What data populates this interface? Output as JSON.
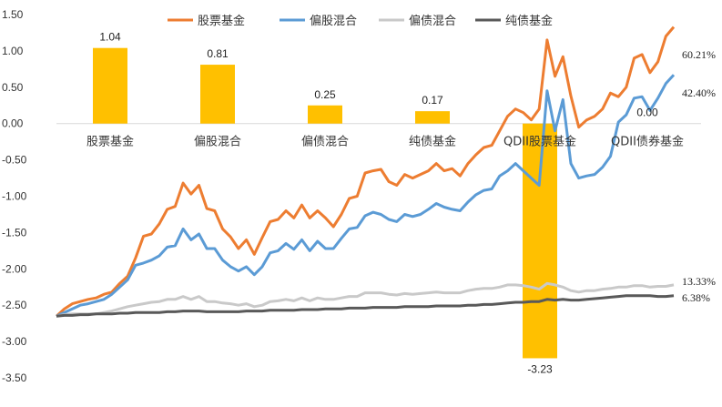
{
  "chart_data": {
    "type": "bar+line",
    "ylim": [
      -3.5,
      1.5
    ],
    "yticks": [
      1.5,
      1.0,
      0.5,
      0.0,
      -0.5,
      -1.0,
      -1.5,
      -2.0,
      -2.5,
      -3.0,
      -3.5
    ],
    "ytick_labels": [
      "1.50",
      "1.00",
      "0.50",
      "0.00",
      "-0.50",
      "-1.00",
      "-1.50",
      "-2.00",
      "-2.50",
      "-3.00",
      "-3.50"
    ],
    "grid": false,
    "legend_position": "top",
    "bars": {
      "categories": [
        "股票基金",
        "偏股混合",
        "偏债混合",
        "纯债基金",
        "QDII股票基金",
        "QDII债券基金"
      ],
      "values": [
        1.04,
        0.81,
        0.25,
        0.17,
        -3.23,
        0.0
      ],
      "value_labels": [
        "1.04",
        "0.81",
        "0.25",
        "0.17",
        "-3.23",
        "0.00"
      ],
      "color": "#FFC000"
    },
    "series": [
      {
        "name": "股票基金",
        "color": "#ED7D31",
        "end_label": "60.21%",
        "values": [
          -2.65,
          -2.55,
          -2.48,
          -2.45,
          -2.42,
          -2.4,
          -2.35,
          -2.32,
          -2.2,
          -2.1,
          -1.85,
          -1.55,
          -1.52,
          -1.38,
          -1.18,
          -1.14,
          -0.82,
          -0.97,
          -0.85,
          -1.17,
          -1.2,
          -1.45,
          -1.56,
          -1.72,
          -1.6,
          -1.8,
          -1.57,
          -1.35,
          -1.32,
          -1.2,
          -1.3,
          -1.12,
          -1.3,
          -1.2,
          -1.3,
          -1.42,
          -1.25,
          -1.03,
          -1.0,
          -0.68,
          -0.65,
          -0.63,
          -0.8,
          -0.85,
          -0.7,
          -0.75,
          -0.7,
          -0.65,
          -0.55,
          -0.65,
          -0.62,
          -0.72,
          -0.55,
          -0.43,
          -0.33,
          -0.3,
          -0.1,
          0.1,
          0.2,
          0.15,
          0.05,
          0.2,
          1.15,
          0.65,
          0.92,
          0.38,
          -0.05,
          0.05,
          0.1,
          0.2,
          0.42,
          0.37,
          0.5,
          0.9,
          0.95,
          0.7,
          0.85,
          1.2,
          1.33
        ]
      },
      {
        "name": "偏股混合",
        "color": "#5B9BD5",
        "end_label": "42.40%",
        "values": [
          -2.65,
          -2.6,
          -2.55,
          -2.5,
          -2.48,
          -2.45,
          -2.42,
          -2.35,
          -2.25,
          -2.15,
          -1.95,
          -1.92,
          -1.88,
          -1.82,
          -1.7,
          -1.68,
          -1.45,
          -1.6,
          -1.52,
          -1.72,
          -1.72,
          -1.88,
          -1.97,
          -2.03,
          -1.97,
          -2.08,
          -1.97,
          -1.78,
          -1.75,
          -1.65,
          -1.73,
          -1.6,
          -1.75,
          -1.62,
          -1.72,
          -1.72,
          -1.58,
          -1.45,
          -1.43,
          -1.27,
          -1.22,
          -1.25,
          -1.32,
          -1.35,
          -1.25,
          -1.28,
          -1.25,
          -1.18,
          -1.1,
          -1.15,
          -1.18,
          -1.2,
          -1.08,
          -0.98,
          -0.92,
          -0.9,
          -0.72,
          -0.65,
          -0.55,
          -0.65,
          -0.75,
          -0.85,
          0.45,
          -0.1,
          0.33,
          -0.55,
          -0.75,
          -0.72,
          -0.7,
          -0.6,
          -0.45,
          0.02,
          0.12,
          0.35,
          0.37,
          0.18,
          0.35,
          0.55,
          0.67
        ]
      },
      {
        "name": "偏债混合",
        "color": "#C9C9C9",
        "end_label": "13.33%",
        "values": [
          -2.65,
          -2.63,
          -2.62,
          -2.62,
          -2.62,
          -2.62,
          -2.6,
          -2.58,
          -2.55,
          -2.52,
          -2.5,
          -2.48,
          -2.46,
          -2.45,
          -2.42,
          -2.42,
          -2.38,
          -2.42,
          -2.38,
          -2.45,
          -2.45,
          -2.47,
          -2.48,
          -2.5,
          -2.48,
          -2.52,
          -2.5,
          -2.45,
          -2.44,
          -2.42,
          -2.44,
          -2.4,
          -2.44,
          -2.4,
          -2.42,
          -2.42,
          -2.4,
          -2.38,
          -2.38,
          -2.33,
          -2.33,
          -2.33,
          -2.35,
          -2.36,
          -2.34,
          -2.35,
          -2.34,
          -2.33,
          -2.32,
          -2.33,
          -2.33,
          -2.33,
          -2.3,
          -2.28,
          -2.27,
          -2.27,
          -2.25,
          -2.22,
          -2.22,
          -2.23,
          -2.25,
          -2.28,
          -2.2,
          -2.22,
          -2.25,
          -2.3,
          -2.32,
          -2.3,
          -2.3,
          -2.28,
          -2.27,
          -2.25,
          -2.25,
          -2.23,
          -2.23,
          -2.25,
          -2.24,
          -2.24,
          -2.22
        ]
      },
      {
        "name": "纯债基金",
        "color": "#595959",
        "end_label": "6.38%",
        "values": [
          -2.65,
          -2.64,
          -2.64,
          -2.63,
          -2.63,
          -2.62,
          -2.62,
          -2.62,
          -2.61,
          -2.61,
          -2.6,
          -2.6,
          -2.6,
          -2.6,
          -2.59,
          -2.59,
          -2.58,
          -2.58,
          -2.58,
          -2.59,
          -2.59,
          -2.59,
          -2.59,
          -2.59,
          -2.58,
          -2.58,
          -2.58,
          -2.57,
          -2.57,
          -2.57,
          -2.57,
          -2.56,
          -2.56,
          -2.56,
          -2.55,
          -2.55,
          -2.55,
          -2.54,
          -2.54,
          -2.54,
          -2.53,
          -2.53,
          -2.53,
          -2.53,
          -2.52,
          -2.52,
          -2.52,
          -2.52,
          -2.51,
          -2.51,
          -2.51,
          -2.51,
          -2.5,
          -2.5,
          -2.49,
          -2.49,
          -2.48,
          -2.47,
          -2.46,
          -2.46,
          -2.45,
          -2.45,
          -2.42,
          -2.43,
          -2.42,
          -2.43,
          -2.43,
          -2.42,
          -2.41,
          -2.4,
          -2.39,
          -2.38,
          -2.37,
          -2.37,
          -2.37,
          -2.37,
          -2.38,
          -2.38,
          -2.37
        ]
      }
    ]
  }
}
